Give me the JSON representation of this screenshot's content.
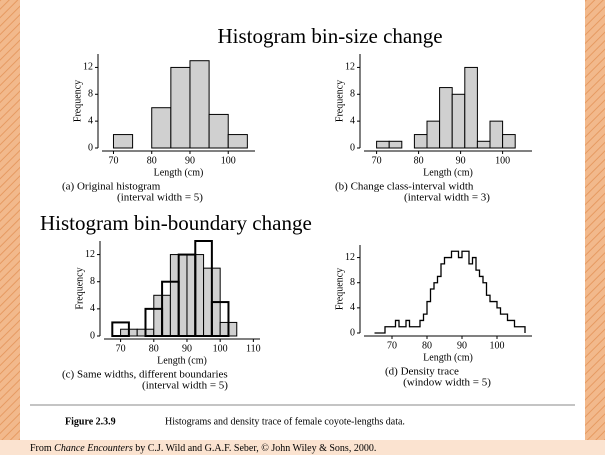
{
  "slide": {
    "title1": "Histogram bin-size change",
    "title2": "Histogram bin-boundary change",
    "figure_label": "Figure 2.3.9",
    "figure_caption": "Histograms and density trace of female coyote-lengths data.",
    "footer": [
      "From ",
      "Chance Encounters",
      " by C.J. Wild and G.A.F. Seber, © John Wiley & Sons, 2000."
    ]
  },
  "chart_data": [
    {
      "type": "histogram",
      "caption": "(a)  Original histogram",
      "subcaption": "(interval width = 5)",
      "xlabel": "Length (cm)",
      "ylabel": "Frequency",
      "series": [
        {
          "bins": [
            70,
            75,
            80,
            85,
            90,
            95,
            100,
            105
          ],
          "counts": [
            2,
            0,
            6,
            12,
            13,
            5,
            2
          ],
          "color": "#d0d0d0"
        }
      ],
      "xlim": [
        67,
        107
      ],
      "xticks": [
        70,
        80,
        90,
        100
      ],
      "ylim": [
        0,
        14
      ],
      "yticks": [
        0,
        4,
        8,
        12
      ]
    },
    {
      "type": "histogram",
      "caption": "(b)  Change class-interval width",
      "subcaption": "(interval width = 3)",
      "xlabel": "Length (cm)",
      "ylabel": "Frequency",
      "series": [
        {
          "bins": [
            70,
            73,
            76,
            79,
            82,
            85,
            88,
            91,
            94,
            97,
            100,
            103
          ],
          "counts": [
            1,
            1,
            0,
            2,
            4,
            9,
            8,
            12,
            1,
            4,
            2
          ],
          "color": "#d0d0d0"
        }
      ],
      "xlim": [
        67,
        107
      ],
      "xticks": [
        70,
        80,
        90,
        100
      ],
      "ylim": [
        0,
        14
      ],
      "yticks": [
        0,
        4,
        8,
        12
      ]
    },
    {
      "type": "histogram",
      "caption": "(c)  Same widths, different boundaries",
      "subcaption": "(interval width = 5)",
      "xlabel": "Length (cm)",
      "ylabel": "Frequency",
      "series": [
        {
          "bins": [
            70,
            75,
            80,
            85,
            90,
            95,
            100,
            105
          ],
          "counts": [
            1,
            1,
            6,
            12,
            12,
            10,
            2
          ],
          "color": "#d0d0d0"
        },
        {
          "bins": [
            67.5,
            72.5,
            77.5,
            82.5,
            87.5,
            92.5,
            97.5,
            102.5
          ],
          "counts": [
            2,
            0,
            4,
            8,
            12,
            14,
            5
          ],
          "color": "none"
        }
      ],
      "xlim": [
        65,
        112
      ],
      "xticks": [
        70,
        80,
        90,
        100,
        110
      ],
      "ylim": [
        0,
        14
      ],
      "yticks": [
        0,
        4,
        8,
        12
      ]
    },
    {
      "type": "step",
      "caption": "(d)  Density trace",
      "subcaption": "(window width = 5)",
      "xlabel": "Length (cm)",
      "ylabel": "Frequency",
      "x": [
        65,
        66,
        67,
        68,
        69,
        70,
        71,
        72,
        73,
        74,
        75,
        76,
        77,
        78,
        79,
        80,
        81,
        82,
        83,
        84,
        85,
        86,
        87,
        88,
        89,
        90,
        91,
        92,
        93,
        94,
        95,
        96,
        97,
        98,
        99,
        100,
        101,
        102,
        103,
        104,
        105,
        106,
        107,
        108
      ],
      "values": [
        0,
        0,
        0,
        1,
        1,
        1,
        2,
        1,
        1,
        2,
        1,
        1,
        1,
        2,
        3,
        5,
        7,
        8,
        9,
        11,
        12,
        12,
        13,
        13,
        12,
        13,
        13,
        11,
        12,
        10,
        9,
        8,
        6,
        5,
        5,
        4,
        3,
        3,
        2,
        2,
        1,
        1,
        1,
        0
      ],
      "color": "#000000",
      "xlim": [
        62,
        110
      ],
      "xticks": [
        70,
        80,
        90,
        100
      ],
      "ylim": [
        0,
        14
      ],
      "yticks": [
        0,
        4,
        8,
        12
      ]
    }
  ]
}
